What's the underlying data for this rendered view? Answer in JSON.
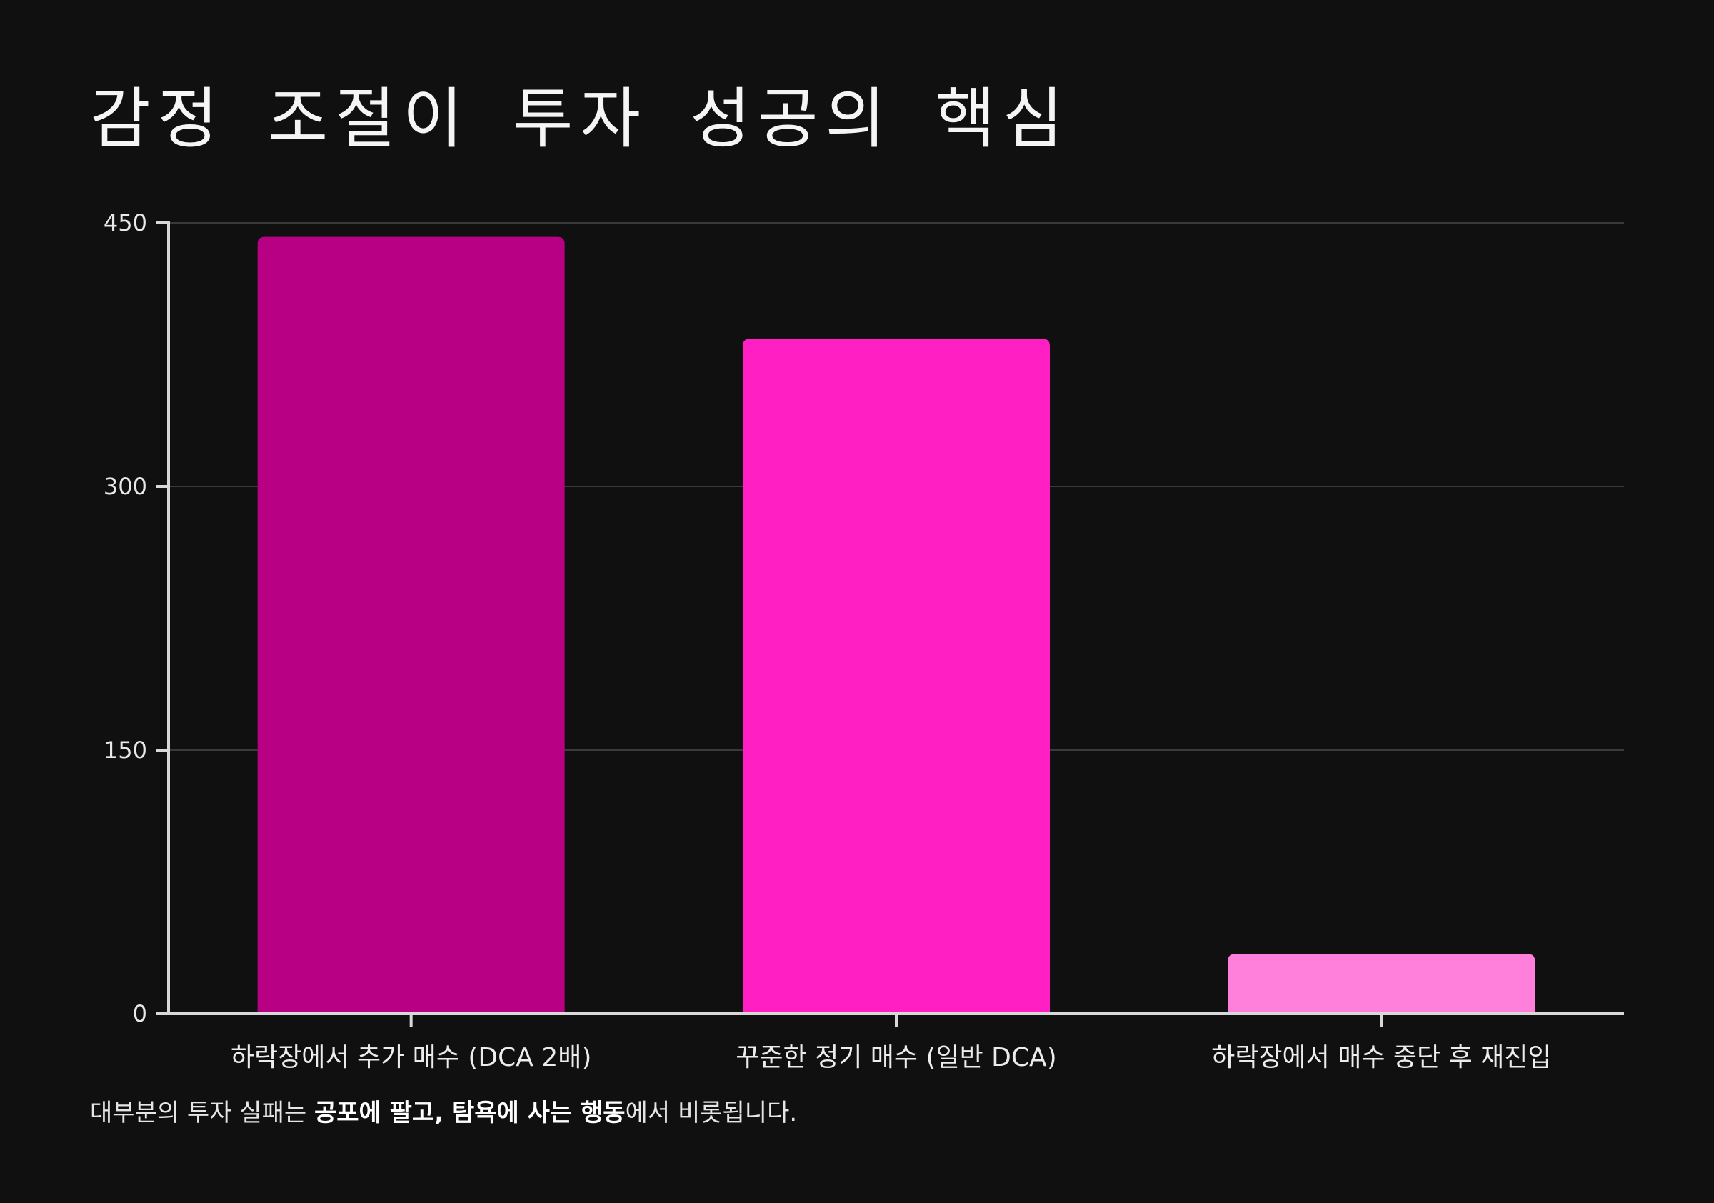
{
  "chart_data": {
    "type": "bar",
    "title": "감정 조절이 투자 성공의 핵심",
    "categories": [
      "하락장에서 추가 매수 (DCA 2배)",
      "꾸준한 정기 매수 (일반 DCA)",
      "하락장에서 매수 중단 후 재진입"
    ],
    "values": [
      442,
      384,
      34
    ],
    "bar_colors": [
      "#b80084",
      "#ff1fc3",
      "#ff80da"
    ],
    "ylim": [
      0,
      450
    ],
    "yticks": [
      0,
      150,
      300,
      450
    ],
    "xlabel": "",
    "ylabel": "",
    "grid": true,
    "legend": "none"
  },
  "colors": {
    "background": "#101010",
    "axis": "#d8d8d8",
    "grid": "#3a3a3a"
  },
  "footnote": {
    "pre": "대부분의 투자 실패는 ",
    "bold1": "공포에 팔고, 탐욕에 사는 행동",
    "post": "에서 비롯됩니다."
  }
}
